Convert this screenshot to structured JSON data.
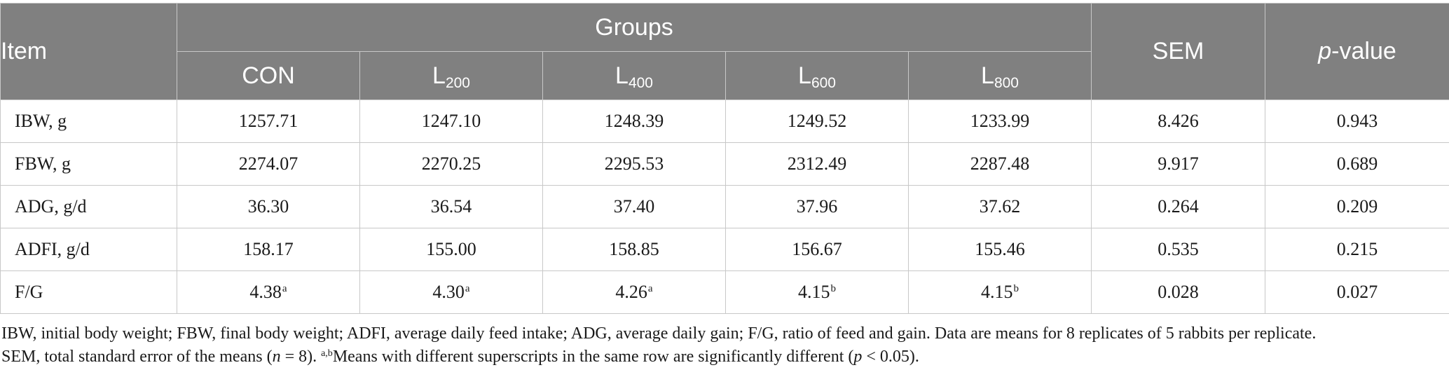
{
  "table": {
    "header": {
      "item": "Item",
      "groups": "Groups",
      "sem": "SEM",
      "pvalue_italic": "p",
      "pvalue_rest": "-value",
      "group_cols": [
        {
          "base": "CON",
          "sub": ""
        },
        {
          "base": "L",
          "sub": "200"
        },
        {
          "base": "L",
          "sub": "400"
        },
        {
          "base": "L",
          "sub": "600"
        },
        {
          "base": "L",
          "sub": "800"
        }
      ]
    },
    "rows": [
      {
        "item": "IBW, g",
        "values": [
          {
            "v": "1257.71",
            "sup": ""
          },
          {
            "v": "1247.10",
            "sup": ""
          },
          {
            "v": "1248.39",
            "sup": ""
          },
          {
            "v": "1249.52",
            "sup": ""
          },
          {
            "v": "1233.99",
            "sup": ""
          }
        ],
        "sem": "8.426",
        "p": "0.943"
      },
      {
        "item": "FBW, g",
        "values": [
          {
            "v": "2274.07",
            "sup": ""
          },
          {
            "v": "2270.25",
            "sup": ""
          },
          {
            "v": "2295.53",
            "sup": ""
          },
          {
            "v": "2312.49",
            "sup": ""
          },
          {
            "v": "2287.48",
            "sup": ""
          }
        ],
        "sem": "9.917",
        "p": "0.689"
      },
      {
        "item": "ADG, g/d",
        "values": [
          {
            "v": "36.30",
            "sup": ""
          },
          {
            "v": "36.54",
            "sup": ""
          },
          {
            "v": "37.40",
            "sup": ""
          },
          {
            "v": "37.96",
            "sup": ""
          },
          {
            "v": "37.62",
            "sup": ""
          }
        ],
        "sem": "0.264",
        "p": "0.209"
      },
      {
        "item": "ADFI, g/d",
        "values": [
          {
            "v": "158.17",
            "sup": ""
          },
          {
            "v": "155.00",
            "sup": ""
          },
          {
            "v": "158.85",
            "sup": ""
          },
          {
            "v": "156.67",
            "sup": ""
          },
          {
            "v": "155.46",
            "sup": ""
          }
        ],
        "sem": "0.535",
        "p": "0.215"
      },
      {
        "item": "F/G",
        "values": [
          {
            "v": "4.38",
            "sup": "a"
          },
          {
            "v": "4.30",
            "sup": "a"
          },
          {
            "v": "4.26",
            "sup": "a"
          },
          {
            "v": "4.15",
            "sup": "b"
          },
          {
            "v": "4.15",
            "sup": "b"
          }
        ],
        "sem": "0.028",
        "p": "0.027"
      }
    ]
  },
  "footnote": {
    "line1": "IBW, initial body weight; FBW, final body weight; ADFI, average daily feed intake; ADG, average daily gain; F/G, ratio of feed and gain. Data are means for 8 replicates of 5 rabbits per replicate.",
    "line2_a": "SEM, total standard error of the means (",
    "line2_n": "n",
    "line2_b": " = 8). ",
    "line2_sup": "a,b",
    "line2_c": "Means with different superscripts in the same row are significantly different (",
    "line2_p": "p",
    "line2_d": " < 0.05)."
  }
}
